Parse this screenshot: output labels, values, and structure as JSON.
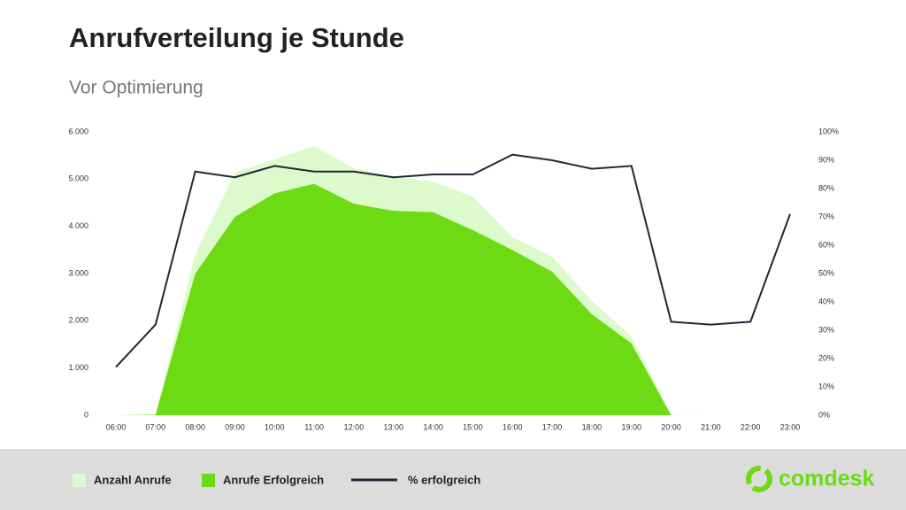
{
  "chart_data": {
    "type": "area",
    "title": "Anrufverteilung  je Stunde",
    "subtitle": "Vor Optimierung",
    "categories": [
      "06:00",
      "07:00",
      "08:00",
      "09:00",
      "10:00",
      "11:00",
      "12:00",
      "13:00",
      "14:00",
      "15:00",
      "16:00",
      "17:00",
      "18:00",
      "19:00",
      "20:00",
      "21:00",
      "22:00",
      "23:00"
    ],
    "series": [
      {
        "name": "Anzahl Anrufe",
        "type": "area",
        "color": "#dcfacb",
        "values": [
          0,
          20,
          3400,
          5140,
          5420,
          5700,
          5230,
          5050,
          4950,
          4630,
          3770,
          3360,
          2420,
          1670,
          10,
          0,
          0,
          0
        ]
      },
      {
        "name": "Anrufe Erfolgreich",
        "type": "area",
        "color": "#6ddb14",
        "values": [
          0,
          10,
          3000,
          4200,
          4700,
          4900,
          4480,
          4330,
          4300,
          3920,
          3500,
          3040,
          2140,
          1520,
          0,
          0,
          0,
          0
        ]
      },
      {
        "name": "% erfolgreich",
        "type": "line",
        "color": "#1e2836",
        "axis": "y2",
        "values": [
          17,
          32,
          86,
          84,
          88,
          86,
          86,
          84,
          85,
          85,
          92,
          90,
          87,
          88,
          33,
          32,
          33,
          71
        ]
      }
    ],
    "ylim": [
      0,
      6000
    ],
    "yticks": [
      {
        "value": 0,
        "label": "0"
      },
      {
        "value": 1000,
        "label": "1.000"
      },
      {
        "value": 2000,
        "label": "2.000"
      },
      {
        "value": 3000,
        "label": "3.000"
      },
      {
        "value": 4000,
        "label": "4.000"
      },
      {
        "value": 5000,
        "label": "5.000"
      },
      {
        "value": 6000,
        "label": "6.000"
      }
    ],
    "y2lim": [
      0,
      100
    ],
    "y2ticks": [
      {
        "value": 0,
        "label": "0%"
      },
      {
        "value": 10,
        "label": "10%"
      },
      {
        "value": 20,
        "label": "20%"
      },
      {
        "value": 30,
        "label": "30%"
      },
      {
        "value": 40,
        "label": "40%"
      },
      {
        "value": 50,
        "label": "50%"
      },
      {
        "value": 60,
        "label": "60%"
      },
      {
        "value": 70,
        "label": "70%"
      },
      {
        "value": 80,
        "label": "80%"
      },
      {
        "value": 90,
        "label": "90%"
      },
      {
        "value": 100,
        "label": "100%"
      }
    ],
    "legend": "bottom"
  },
  "brand": "comdesk"
}
